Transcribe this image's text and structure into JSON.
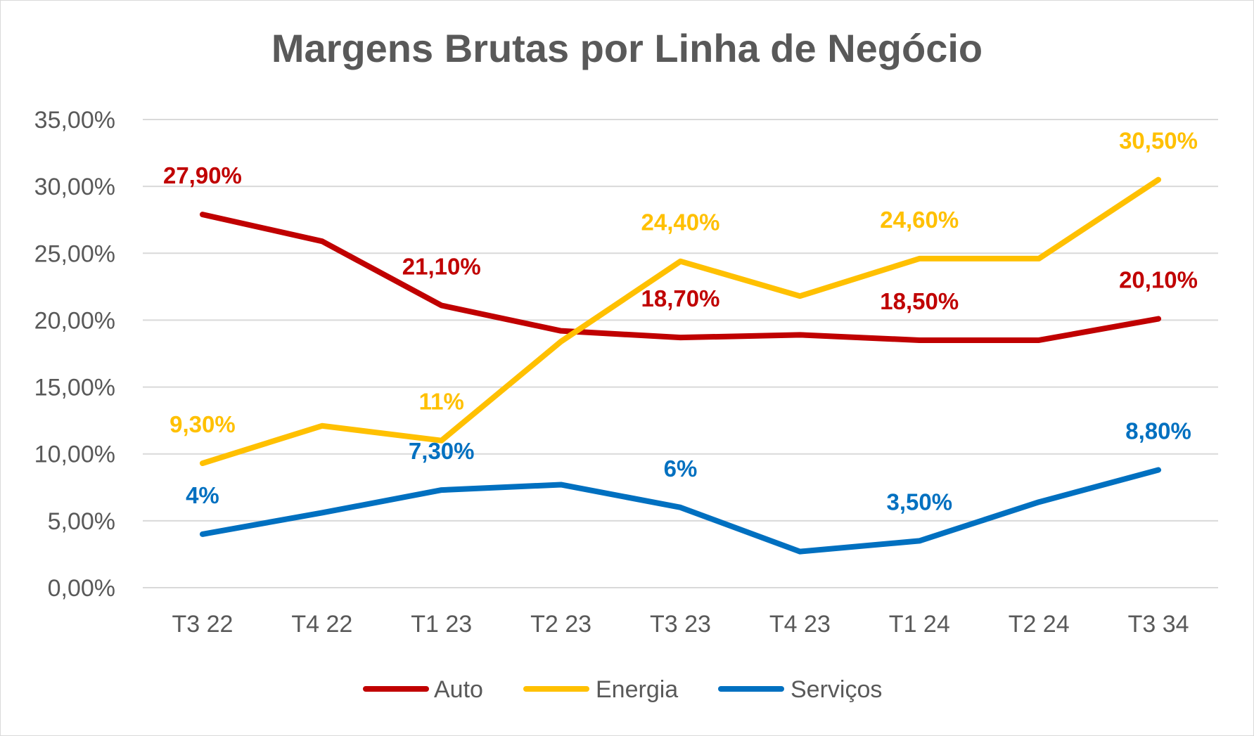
{
  "chart_data": {
    "type": "line",
    "title": "Margens Brutas por Linha de Negócio",
    "xlabel": "",
    "ylabel": "",
    "ylim": [
      0,
      35
    ],
    "yticks": [
      "0,00%",
      "5,00%",
      "10,00%",
      "15,00%",
      "20,00%",
      "25,00%",
      "30,00%",
      "35,00%"
    ],
    "categories": [
      "T3 22",
      "T4 22",
      "T1 23",
      "T2 23",
      "T3 23",
      "T4 23",
      "T1 24",
      "T2 24",
      "T3 34"
    ],
    "grid": true,
    "legend_position": "bottom",
    "series": [
      {
        "name": "Auto",
        "color": "#c00000",
        "values": [
          27.9,
          25.9,
          21.1,
          19.2,
          18.7,
          18.9,
          18.5,
          18.5,
          20.1
        ],
        "labels": [
          "27,90%",
          "",
          "21,10%",
          "",
          "18,70%",
          "",
          "18,50%",
          "",
          "20,10%"
        ]
      },
      {
        "name": "Energia",
        "color": "#ffc000",
        "values": [
          9.3,
          12.1,
          11.0,
          18.4,
          24.4,
          21.8,
          24.6,
          24.6,
          30.5
        ],
        "labels": [
          "9,30%",
          "",
          "11%",
          "",
          "24,40%",
          "",
          "24,60%",
          "",
          "30,50%"
        ]
      },
      {
        "name": "Serviços",
        "color": "#0070c0",
        "values": [
          4.0,
          5.6,
          7.3,
          7.7,
          6.0,
          2.7,
          3.5,
          6.4,
          8.8
        ],
        "labels": [
          "4%",
          "",
          "7,30%",
          "",
          "6%",
          "",
          "3,50%",
          "",
          "8,80%"
        ]
      }
    ]
  }
}
